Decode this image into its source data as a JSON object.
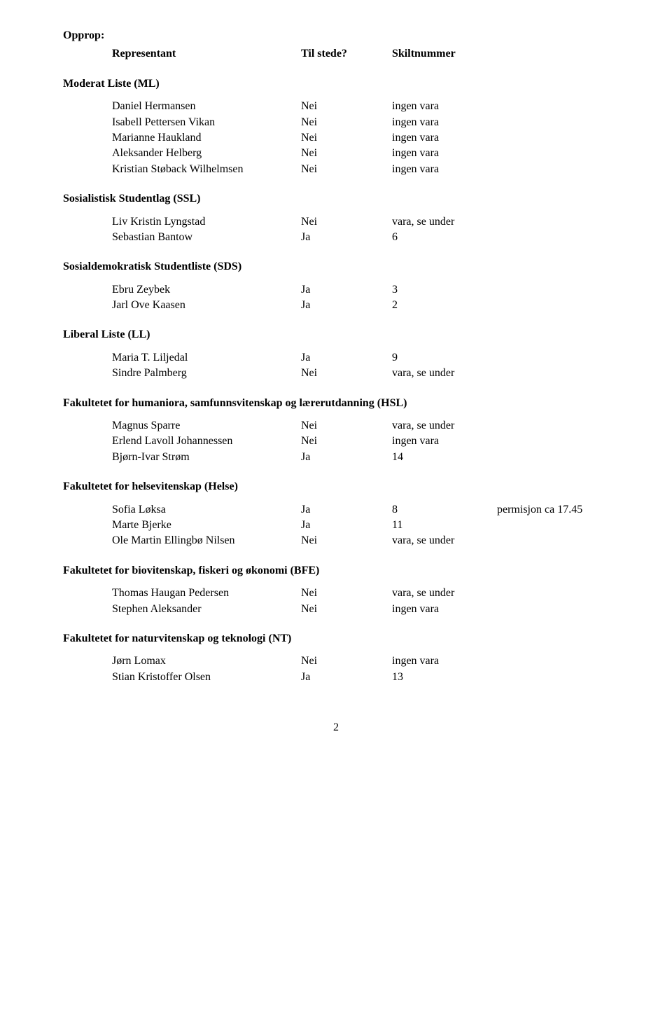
{
  "opprop_label": "Opprop:",
  "columns": {
    "rep": "Representant",
    "tilstede": "Til stede?",
    "skilt": "Skiltnummer"
  },
  "sections": [
    {
      "title": "Moderat Liste (ML)",
      "rows": [
        {
          "name": "Daniel Hermansen",
          "status": "Nei",
          "note": "ingen vara"
        },
        {
          "name": "Isabell Pettersen Vikan",
          "status": "Nei",
          "note": "ingen vara"
        },
        {
          "name": "Marianne Haukland",
          "status": "Nei",
          "note": "ingen vara"
        },
        {
          "name": "Aleksander Helberg",
          "status": "Nei",
          "note": "ingen vara"
        },
        {
          "name": "Kristian Støback Wilhelmsen",
          "status": "Nei",
          "note": "ingen vara"
        }
      ]
    },
    {
      "title": "Sosialistisk Studentlag (SSL)",
      "rows": [
        {
          "name": "Liv Kristin Lyngstad",
          "status": "Nei",
          "note": "vara, se under"
        },
        {
          "name": "Sebastian Bantow",
          "status": "Ja",
          "note": "6"
        }
      ]
    },
    {
      "title": "Sosialdemokratisk Studentliste (SDS)",
      "rows": [
        {
          "name": "Ebru Zeybek",
          "status": "Ja",
          "note": "3"
        },
        {
          "name": "Jarl Ove Kaasen",
          "status": "Ja",
          "note": "2"
        }
      ]
    },
    {
      "title": "Liberal Liste (LL)",
      "rows": [
        {
          "name": "Maria T. Liljedal",
          "status": "Ja",
          "note": "9"
        },
        {
          "name": "Sindre Palmberg",
          "status": "Nei",
          "note": "vara, se under"
        }
      ]
    },
    {
      "title": "Fakultetet for humaniora, samfunnsvitenskap og lærerutdanning (HSL)",
      "rows": [
        {
          "name": "Magnus Sparre",
          "status": "Nei",
          "note": "vara, se under"
        },
        {
          "name": "Erlend Lavoll Johannessen",
          "status": "Nei",
          "note": "ingen vara"
        },
        {
          "name": "Bjørn-Ivar Strøm",
          "status": "Ja",
          "note": "14"
        }
      ]
    },
    {
      "title": "Fakultetet for helsevitenskap (Helse)",
      "rows": [
        {
          "name": "Sofia Løksa",
          "status": "Ja",
          "note": "8",
          "extra": "permisjon ca 17.45"
        },
        {
          "name": "Marte Bjerke",
          "status": "Ja",
          "note": "11"
        },
        {
          "name": "Ole Martin Ellingbø Nilsen",
          "status": "Nei",
          "note": "vara, se under"
        }
      ]
    },
    {
      "title": "Fakultetet for biovitenskap, fiskeri og økonomi (BFE)",
      "rows": [
        {
          "name": "Thomas Haugan Pedersen",
          "status": "Nei",
          "note": "vara, se under"
        },
        {
          "name": "Stephen Aleksander",
          "status": "Nei",
          "note": "ingen vara"
        }
      ]
    },
    {
      "title": "Fakultetet for naturvitenskap og teknologi (NT)",
      "rows": [
        {
          "name": "Jørn Lomax",
          "status": "Nei",
          "note": "ingen vara"
        },
        {
          "name": "Stian Kristoffer Olsen",
          "status": "Ja",
          "note": "13"
        }
      ]
    }
  ],
  "page_number": "2"
}
